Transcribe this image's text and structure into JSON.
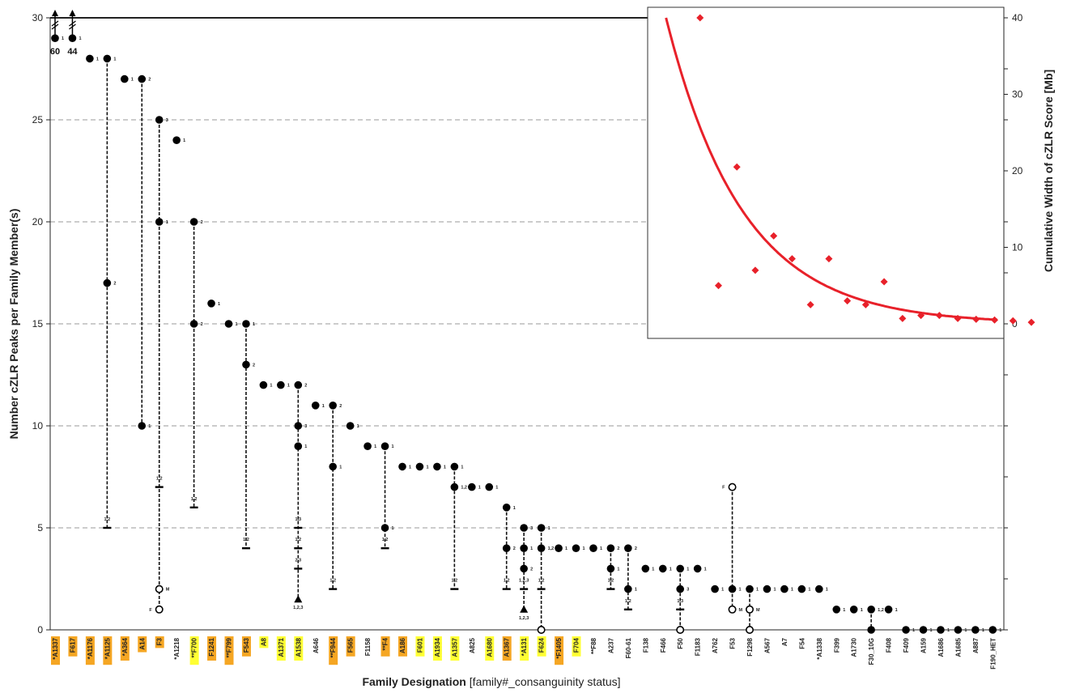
{
  "chart_data": [
    {
      "type": "scatter",
      "xlabel": "Family Designation",
      "xlabel_suffix": "[family#_consanguinity status]",
      "ylabel": "Number cZLR Peaks per Family Member(s)",
      "ylim": [
        0,
        30
      ],
      "yticks": [
        0,
        5,
        10,
        15,
        20,
        25,
        30
      ],
      "grid": "dashed horizontal",
      "gridlines": [
        5,
        10,
        15,
        20,
        25
      ],
      "truncated_values": [
        "60",
        "44"
      ],
      "families": [
        {
          "label": "*A1337",
          "hl": "orange",
          "members": [
            {
              "y": 29,
              "tag": "1"
            }
          ],
          "trunc": "60"
        },
        {
          "label": "F617",
          "hl": "orange",
          "members": [
            {
              "y": 29,
              "tag": "1"
            }
          ],
          "trunc": "44"
        },
        {
          "label": "*A1176",
          "hl": "orange",
          "members": [
            {
              "y": 28,
              "tag": "1"
            }
          ]
        },
        {
          "label": "*A1125",
          "hl": "orange",
          "members": [
            {
              "y": 28,
              "tag": "1"
            },
            {
              "y": 17,
              "tag": "2"
            },
            {
              "y": 5,
              "shape": "bar",
              "tag": "1,2"
            }
          ]
        },
        {
          "label": "*A364",
          "hl": "orange",
          "members": [
            {
              "y": 27,
              "tag": "1"
            }
          ]
        },
        {
          "label": "A14",
          "hl": "orange",
          "members": [
            {
              "y": 27,
              "tag": "2"
            },
            {
              "y": 10,
              "tag": "1"
            }
          ]
        },
        {
          "label": "F3",
          "hl": "orange",
          "members": [
            {
              "y": 25,
              "tag": "3"
            },
            {
              "y": 20,
              "tag": "1"
            },
            {
              "y": 7,
              "shape": "bar",
              "tag": "1,2"
            },
            {
              "y": 2,
              "shape": "open",
              "tag": "M"
            },
            {
              "y": 1,
              "shape": "open",
              "tag": "F"
            }
          ]
        },
        {
          "label": "*A1218",
          "hl": "none",
          "members": [
            {
              "y": 24,
              "tag": "1"
            }
          ]
        },
        {
          "label": "**F700",
          "hl": "yellow",
          "members": [
            {
              "y": 20,
              "tag": "2"
            },
            {
              "y": 15,
              "tag": "2"
            },
            {
              "y": 6,
              "shape": "bar",
              "tag": "1,2"
            }
          ]
        },
        {
          "label": "F1241",
          "hl": "orange",
          "members": [
            {
              "y": 16,
              "tag": "1"
            }
          ]
        },
        {
          "label": "**F799",
          "hl": "orange",
          "members": [
            {
              "y": 15,
              "tag": "1"
            }
          ]
        },
        {
          "label": "F543",
          "hl": "orange",
          "members": [
            {
              "y": 15,
              "tag": "1"
            },
            {
              "y": 13,
              "tag": "2"
            },
            {
              "y": 4,
              "shape": "bar",
              "tag": "1,2"
            }
          ]
        },
        {
          "label": "A8",
          "hl": "yellow",
          "members": [
            {
              "y": 12,
              "tag": "1"
            }
          ]
        },
        {
          "label": "A1371",
          "hl": "yellow",
          "members": [
            {
              "y": 12,
              "tag": "1"
            }
          ]
        },
        {
          "label": "A1538",
          "hl": "yellow",
          "members": [
            {
              "y": 12,
              "tag": "2"
            },
            {
              "y": 10,
              "tag": "3"
            },
            {
              "y": 9,
              "tag": "1"
            },
            {
              "y": 5,
              "shape": "bar",
              "tag": "1,3"
            },
            {
              "y": 4,
              "shape": "bar",
              "tag": "1,2"
            },
            {
              "y": 3,
              "shape": "bar",
              "tag": "2,3"
            },
            {
              "y": 1.5,
              "shape": "triangle",
              "tag": "1,2,3"
            }
          ]
        },
        {
          "label": "A646",
          "hl": "none",
          "members": [
            {
              "y": 11,
              "tag": "1"
            }
          ]
        },
        {
          "label": "**F944",
          "hl": "orange",
          "members": [
            {
              "y": 11,
              "tag": "2"
            },
            {
              "y": 8,
              "tag": "1"
            },
            {
              "y": 2,
              "shape": "bar",
              "tag": "1,2"
            }
          ]
        },
        {
          "label": "F565",
          "hl": "orange",
          "members": [
            {
              "y": 10,
              "tag": "1"
            }
          ]
        },
        {
          "label": "F1158",
          "hl": "none",
          "members": [
            {
              "y": 9,
              "tag": "1"
            }
          ]
        },
        {
          "label": "**F4",
          "hl": "orange",
          "members": [
            {
              "y": 9,
              "tag": "1"
            },
            {
              "y": 5,
              "tag": "1"
            },
            {
              "y": 4,
              "shape": "bar",
              "tag": "1,2"
            }
          ]
        },
        {
          "label": "A186",
          "hl": "orange",
          "members": [
            {
              "y": 8,
              "tag": "1"
            }
          ]
        },
        {
          "label": "F601",
          "hl": "yellow",
          "members": [
            {
              "y": 8,
              "tag": "1"
            }
          ]
        },
        {
          "label": "A1934",
          "hl": "yellow",
          "members": [
            {
              "y": 8,
              "tag": "1"
            }
          ]
        },
        {
          "label": "A1357",
          "hl": "yellow",
          "members": [
            {
              "y": 8,
              "tag": "1"
            },
            {
              "y": 7,
              "tag": "1,2"
            },
            {
              "y": 2,
              "shape": "bar",
              "tag": "1,2"
            }
          ]
        },
        {
          "label": "A825",
          "hl": "none",
          "members": [
            {
              "y": 7,
              "tag": "1"
            }
          ]
        },
        {
          "label": "A1680",
          "hl": "yellow",
          "members": [
            {
              "y": 7,
              "tag": "1"
            }
          ]
        },
        {
          "label": "A1367",
          "hl": "orange",
          "members": [
            {
              "y": 6,
              "tag": "1"
            },
            {
              "y": 4,
              "tag": "2"
            },
            {
              "y": 2,
              "shape": "bar",
              "tag": "1,2"
            }
          ]
        },
        {
          "label": "*A131",
          "hl": "yellow",
          "members": [
            {
              "y": 5,
              "tag": "3"
            },
            {
              "y": 4,
              "tag": "1"
            },
            {
              "y": 3,
              "tag": "2"
            },
            {
              "y": 2,
              "shape": "bar",
              "tag": "1,2,3"
            },
            {
              "y": 1,
              "shape": "triangle",
              "tag": "1,2,3"
            }
          ]
        },
        {
          "label": "F624",
          "hl": "yellow",
          "members": [
            {
              "y": 5,
              "tag": "1"
            },
            {
              "y": 4,
              "tag": "1,2"
            },
            {
              "y": 2,
              "shape": "bar",
              "tag": "1,2"
            },
            {
              "y": 0,
              "shape": "open",
              "tag": ""
            }
          ]
        },
        {
          "label": "*F1405",
          "hl": "orange",
          "members": [
            {
              "y": 4,
              "tag": "1"
            }
          ]
        },
        {
          "label": "F704",
          "hl": "yellow",
          "members": [
            {
              "y": 4,
              "tag": "1"
            }
          ]
        },
        {
          "label": "**F88",
          "hl": "none",
          "members": [
            {
              "y": 4,
              "tag": "1"
            }
          ]
        },
        {
          "label": "A237",
          "hl": "none",
          "members": [
            {
              "y": 4,
              "tag": "2"
            },
            {
              "y": 3,
              "tag": "1"
            },
            {
              "y": 2,
              "shape": "bar",
              "tag": "1,2"
            }
          ]
        },
        {
          "label": "F60-61",
          "hl": "none",
          "members": [
            {
              "y": 4,
              "tag": "2"
            },
            {
              "y": 2,
              "tag": "1"
            },
            {
              "y": 1,
              "shape": "bar",
              "tag": "1,2"
            }
          ]
        },
        {
          "label": "F138",
          "hl": "none",
          "members": [
            {
              "y": 3,
              "tag": "1"
            }
          ]
        },
        {
          "label": "F466",
          "hl": "none",
          "members": [
            {
              "y": 3,
              "tag": "1"
            }
          ]
        },
        {
          "label": "F50",
          "hl": "none",
          "members": [
            {
              "y": 3,
              "tag": "1"
            },
            {
              "y": 2,
              "tag": "3"
            },
            {
              "y": 1,
              "shape": "bar",
              "tag": "1,3"
            },
            {
              "y": 0,
              "shape": "open",
              "tag": ""
            }
          ]
        },
        {
          "label": "F1183",
          "hl": "none",
          "members": [
            {
              "y": 3,
              "tag": "1"
            }
          ]
        },
        {
          "label": "A762",
          "hl": "none",
          "members": [
            {
              "y": 2,
              "tag": "1"
            }
          ]
        },
        {
          "label": "F53",
          "hl": "none",
          "members": [
            {
              "y": 7,
              "shape": "open",
              "tag": "F"
            },
            {
              "y": 2,
              "tag": "1"
            },
            {
              "y": 1,
              "shape": "open",
              "tag": "M"
            }
          ]
        },
        {
          "label": "F1298",
          "hl": "none",
          "members": [
            {
              "y": 2,
              "tag": "1"
            },
            {
              "y": 1,
              "shape": "open",
              "tag": "M"
            },
            {
              "y": 0,
              "shape": "open",
              "tag": ""
            }
          ]
        },
        {
          "label": "A567",
          "hl": "none",
          "members": [
            {
              "y": 2,
              "tag": "1"
            }
          ]
        },
        {
          "label": "A7",
          "hl": "none",
          "members": [
            {
              "y": 2,
              "tag": "1"
            }
          ]
        },
        {
          "label": "F54",
          "hl": "none",
          "members": [
            {
              "y": 2,
              "tag": "1"
            }
          ]
        },
        {
          "label": "*A1338",
          "hl": "none",
          "members": [
            {
              "y": 2,
              "tag": "1"
            }
          ]
        },
        {
          "label": "F399",
          "hl": "none",
          "members": [
            {
              "y": 1,
              "tag": "1"
            }
          ]
        },
        {
          "label": "A1730",
          "hl": "none",
          "members": [
            {
              "y": 1,
              "tag": "1"
            }
          ]
        },
        {
          "label": "F30_10G",
          "hl": "none",
          "members": [
            {
              "y": 1,
              "tag": "1,2"
            },
            {
              "y": 0,
              "tag": ""
            }
          ]
        },
        {
          "label": "F408",
          "hl": "none",
          "members": [
            {
              "y": 1,
              "tag": "1"
            }
          ]
        },
        {
          "label": "F409",
          "hl": "none",
          "members": [
            {
              "y": 0,
              "tag": "1"
            }
          ]
        },
        {
          "label": "A159",
          "hl": "none",
          "members": [
            {
              "y": 0,
              "tag": "1"
            }
          ]
        },
        {
          "label": "A1686",
          "hl": "none",
          "members": [
            {
              "y": 0,
              "tag": "1"
            }
          ]
        },
        {
          "label": "A1685",
          "hl": "none",
          "members": [
            {
              "y": 0,
              "tag": "1"
            }
          ]
        },
        {
          "label": "A887",
          "hl": "none",
          "members": [
            {
              "y": 0,
              "tag": "1"
            }
          ]
        },
        {
          "label": "F190_HET",
          "hl": "none",
          "members": [
            {
              "y": 0,
              "tag": "1"
            }
          ]
        }
      ],
      "colors": {
        "orange": "#f5a623",
        "yellow": "#ffff33",
        "marker": "#000000"
      }
    },
    {
      "type": "scatter",
      "inset": true,
      "ylabel": "Cumulative Width of cZLR Score [Mb]",
      "ylabel_position": "right",
      "ylim": [
        0,
        40
      ],
      "yticks": [
        0,
        10,
        20,
        30,
        40
      ],
      "x": [
        2,
        3,
        4,
        5,
        6,
        7,
        8,
        9,
        10,
        11,
        12,
        13,
        14,
        15,
        16,
        17,
        18,
        19,
        20
      ],
      "y": [
        40,
        5,
        20.5,
        7,
        11.5,
        8.5,
        2.5,
        8.5,
        3,
        2.5,
        5.5,
        0.7,
        1.1,
        1.1,
        0.7,
        0.6,
        0.5,
        0.4,
        0.2
      ],
      "fit": {
        "type": "exponential",
        "a": 40,
        "b": 0.24,
        "x_start": 1
      },
      "colors": {
        "points": "#e8212a",
        "fit": "#e8212a"
      }
    }
  ]
}
